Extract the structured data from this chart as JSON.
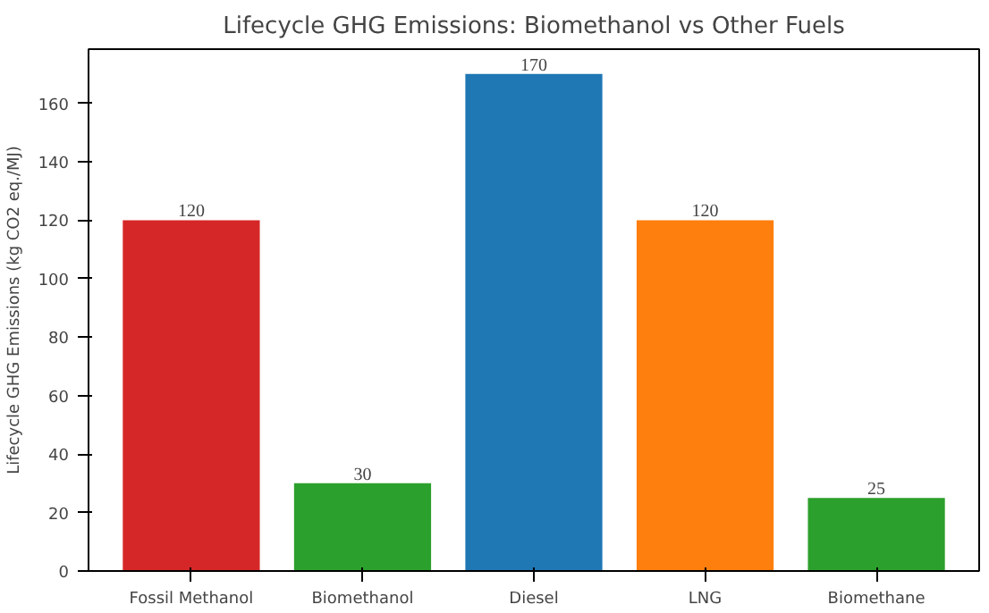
{
  "chart_data": {
    "type": "bar",
    "title": "Lifecycle GHG Emissions: Biomethanol vs Other Fuels",
    "ylabel": "Lifecycle GHG Emissions (kg CO2 eq./MJ)",
    "categories": [
      "Fossil Methanol",
      "Biomethanol",
      "Diesel",
      "LNG",
      "Biomethane"
    ],
    "values": [
      120,
      30,
      170,
      120,
      25
    ],
    "colors": [
      "#d62728",
      "#2ca02c",
      "#1f77b4",
      "#ff7f0e",
      "#2ca02c"
    ],
    "ylim": [
      0,
      178.5
    ],
    "yticks": [
      0,
      20,
      40,
      60,
      80,
      100,
      120,
      140,
      160
    ],
    "data_labels": true
  }
}
